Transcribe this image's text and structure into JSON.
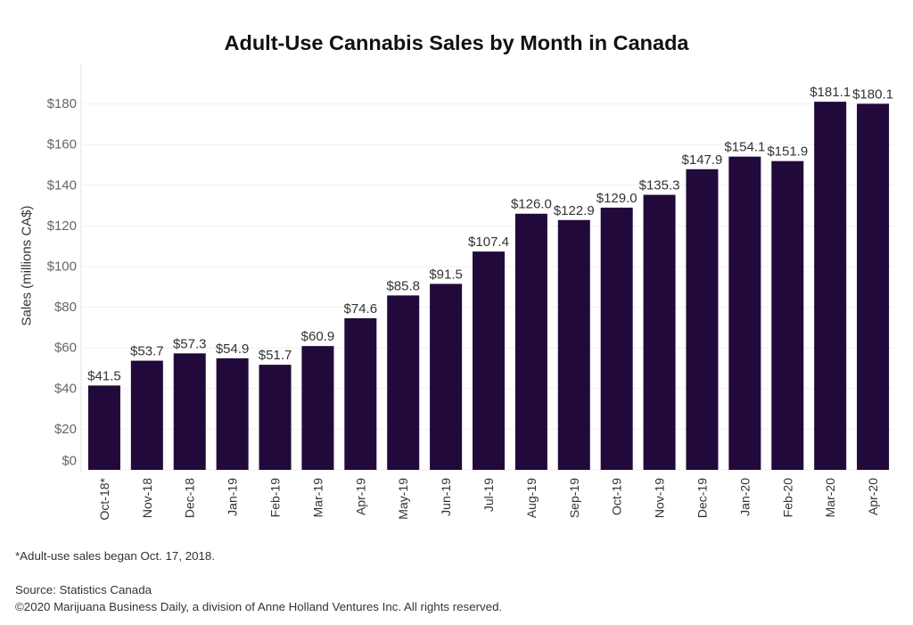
{
  "chart_data": {
    "type": "bar",
    "title": "Adult-Use Cannabis Sales by Month in Canada",
    "ylabel": "Sales (millions CA$)",
    "categories": [
      "Oct-18*",
      "Nov-18",
      "Dec-18",
      "Jan-19",
      "Feb-19",
      "Mar-19",
      "Apr-19",
      "May-19",
      "Jun-19",
      "Jul-19",
      "Aug-19",
      "Sep-19",
      "Oct-19",
      "Nov-19",
      "Dec-19",
      "Jan-20",
      "Feb-20",
      "Mar-20",
      "Apr-20"
    ],
    "values": [
      41.5,
      53.7,
      57.3,
      54.9,
      51.7,
      60.9,
      74.6,
      85.8,
      91.5,
      107.4,
      126.0,
      122.9,
      129.0,
      135.3,
      147.9,
      154.1,
      151.9,
      181.1,
      180.1
    ],
    "data_labels": [
      "$41.5",
      "$53.7",
      "$57.3",
      "$54.9",
      "$51.7",
      "$60.9",
      "$74.6",
      "$85.8",
      "$91.5",
      "$107.4",
      "$126.0",
      "$122.9",
      "$129.0",
      "$135.3",
      "$147.9",
      "$154.1",
      "$151.9",
      "$181.1",
      "$180.1"
    ],
    "ylim": [
      0,
      200
    ],
    "y_ticks": [
      0,
      20,
      40,
      60,
      80,
      100,
      120,
      140,
      160,
      180
    ],
    "y_tick_labels": [
      "$0",
      "$20",
      "$40",
      "$60",
      "$80",
      "$100",
      "$120",
      "$140",
      "$160",
      "$180"
    ],
    "grid": true,
    "bar_color": "#22093c"
  },
  "footnote": "*Adult-use sales began Oct. 17, 2018.",
  "source": "Source: Statistics Canada",
  "copyright": "©2020 Marijuana Business Daily, a division of Anne Holland Ventures Inc. All rights reserved."
}
